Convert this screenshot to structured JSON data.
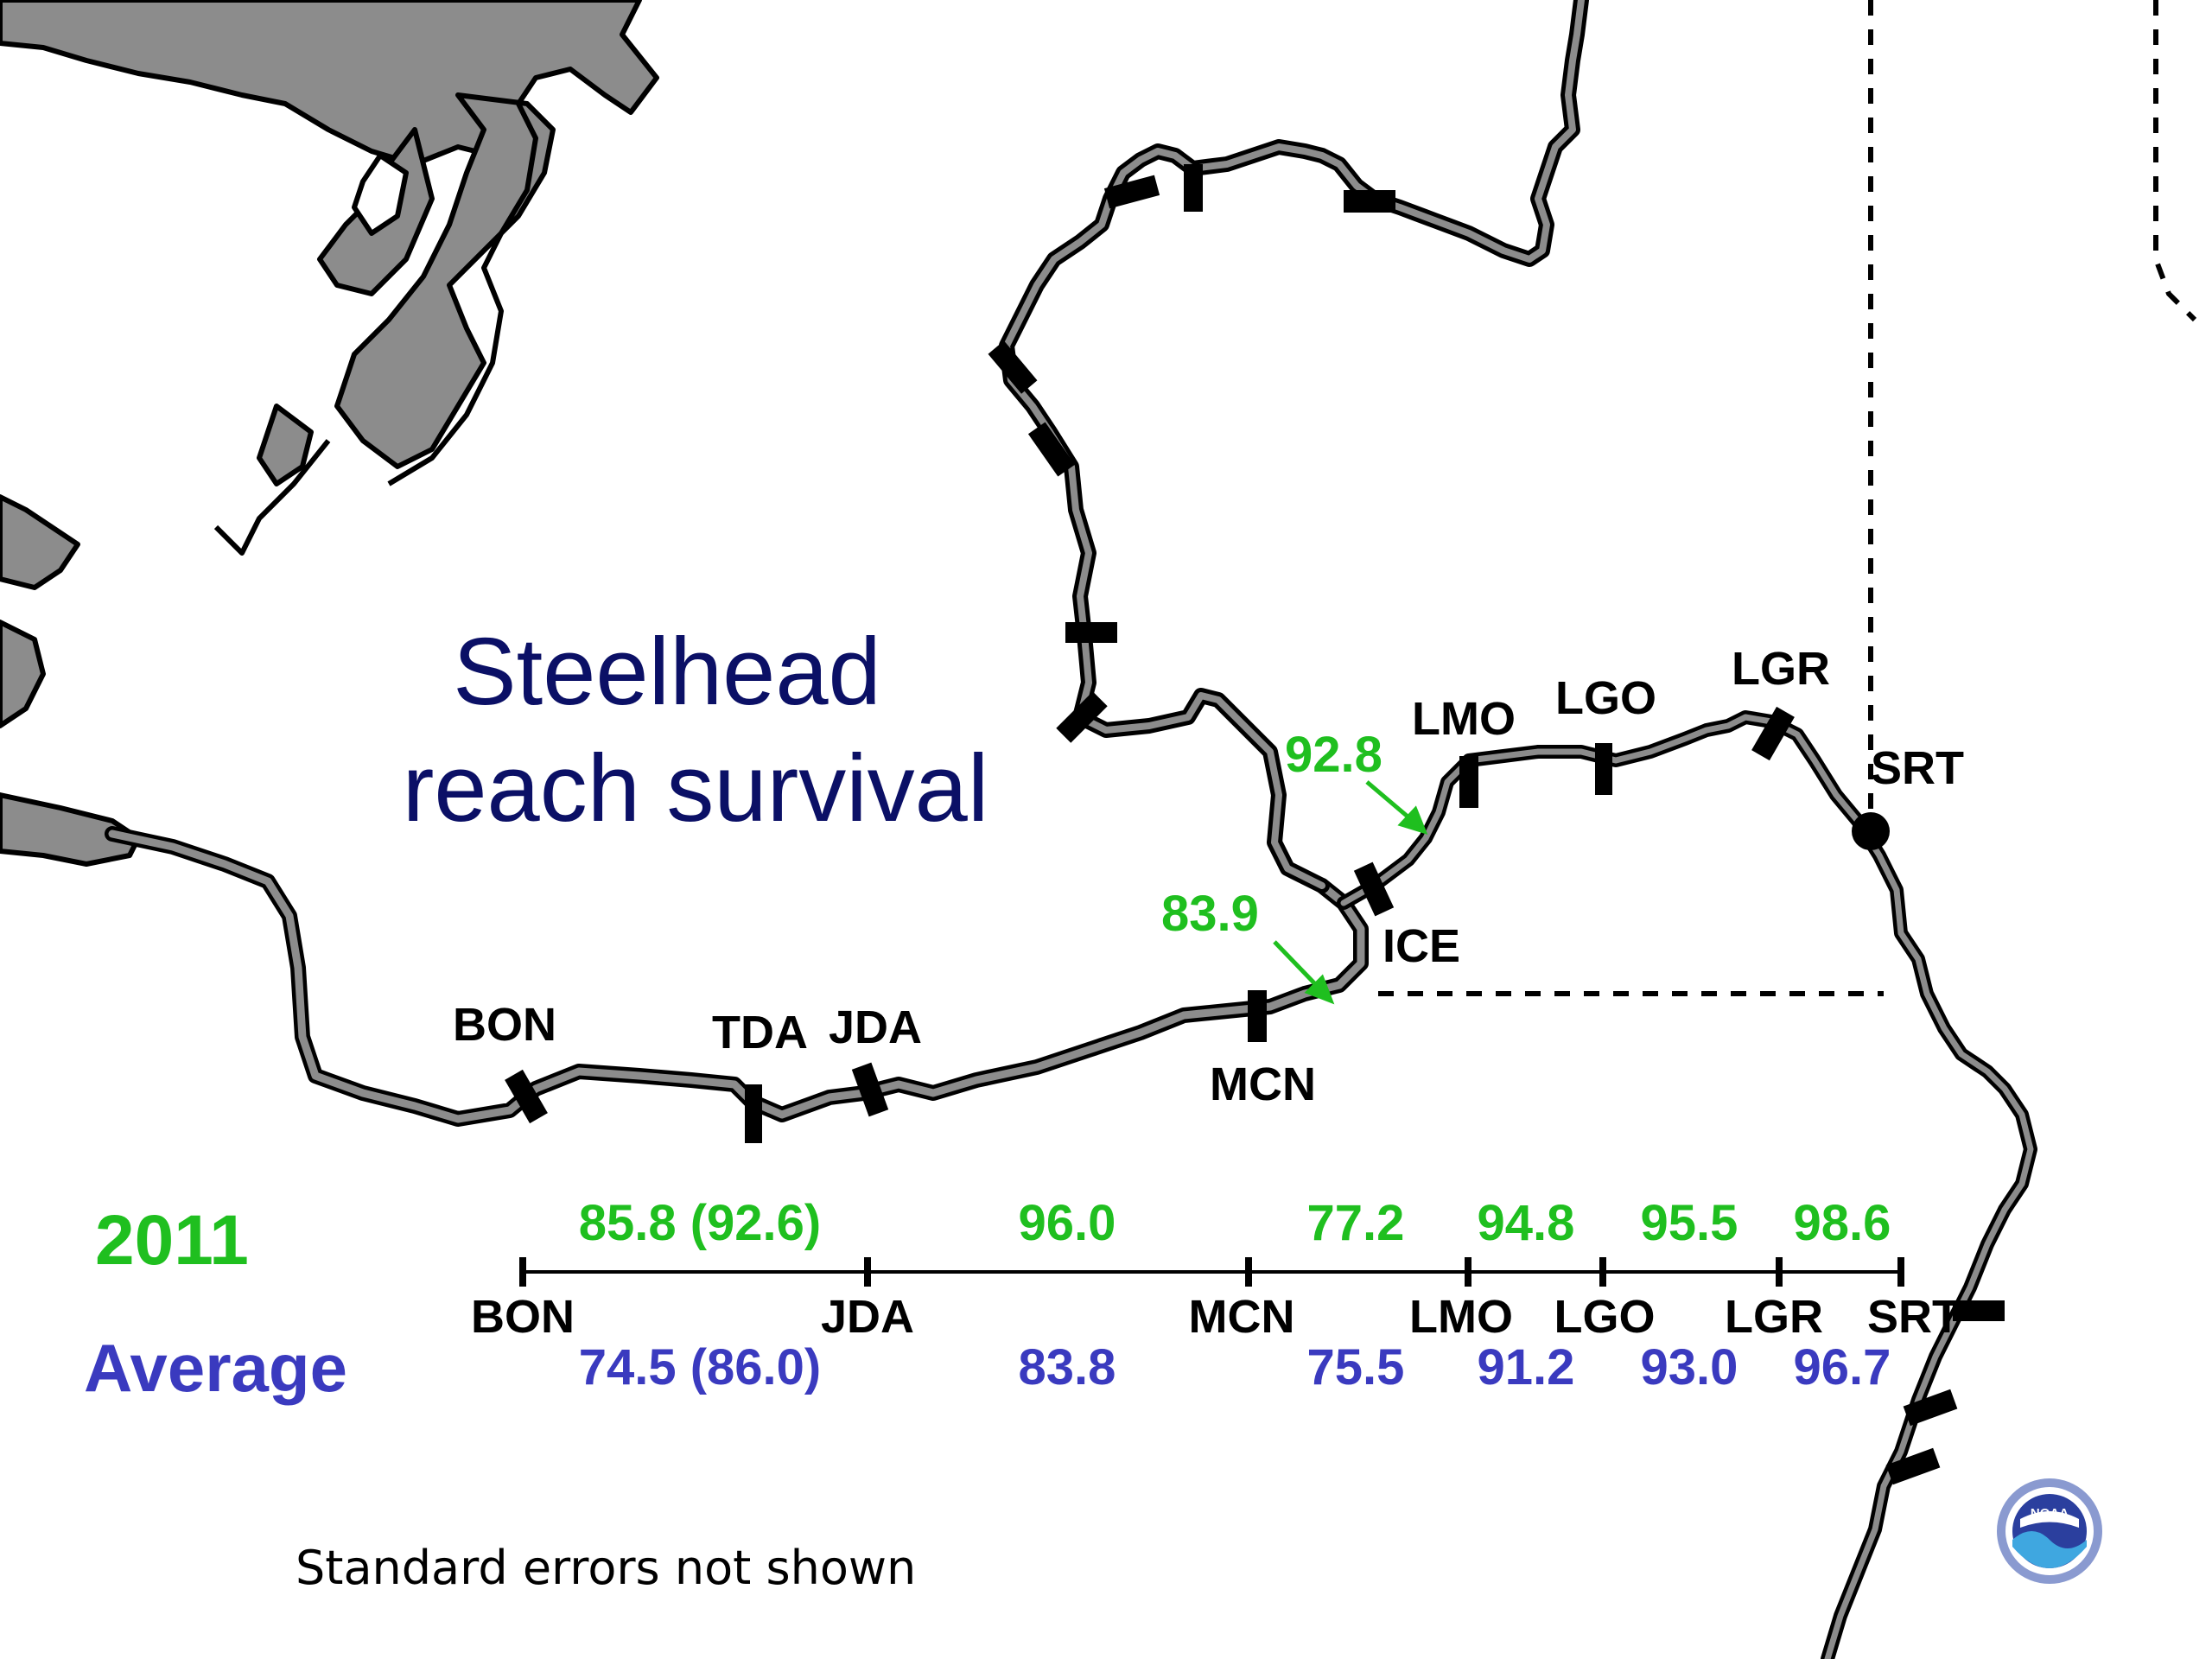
{
  "title_line1": "Steelhead",
  "title_line2": "reach survival",
  "colors": {
    "green": "#1fbf1f",
    "blue": "#3a3abf",
    "navy": "#0b1066",
    "water": "#8c8c8c",
    "land_outline": "#000000"
  },
  "map_dams": {
    "bon": "BON",
    "tda": "TDA",
    "jda": "JDA",
    "mcn": "MCN",
    "ice": "ICE",
    "lmo": "LMO",
    "lgo": "LGO",
    "lgr": "LGR",
    "srt": "SRT"
  },
  "map_survival": {
    "mcn_ice": "83.9",
    "ice_lmo": "92.8"
  },
  "year_label": "2011",
  "average_label": "Average",
  "timeline": {
    "dams": [
      "BON",
      "JDA",
      "MCN",
      "LMO",
      "LGO",
      "LGR",
      "SRT"
    ],
    "year_values": [
      "85.8 (92.6)",
      "96.0",
      "77.2",
      "94.8",
      "95.5",
      "98.6"
    ],
    "average_values": [
      "74.5 (86.0)",
      "83.8",
      "75.5",
      "91.2",
      "93.0",
      "96.7"
    ]
  },
  "footnote": "Standard errors not shown",
  "logo_text": "NOAA",
  "icons": [
    "noaa-logo-icon",
    "dam-marker-icon",
    "arrow-icon",
    "trap-dot-icon"
  ]
}
